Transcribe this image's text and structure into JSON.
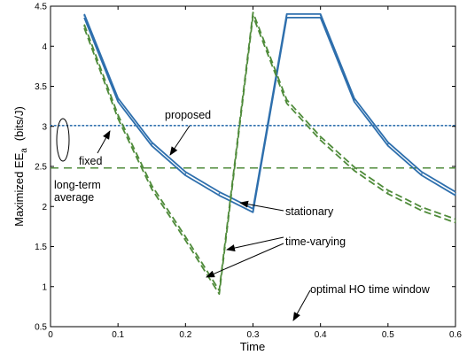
{
  "chart_data": {
    "type": "line",
    "xlabel": "Time",
    "ylabel_main": "Maximized EE",
    "ylabel_sub": "a",
    "ylabel_unit": "(bits/J)",
    "xlim": [
      0,
      0.6
    ],
    "ylim": [
      0.5,
      4.5
    ],
    "xticks": [
      "0",
      "0.1",
      "0.2",
      "0.3",
      "0.4",
      "0.5",
      "0.6"
    ],
    "yticks": [
      "0.5",
      "1",
      "1.5",
      "2",
      "2.5",
      "3",
      "3.5",
      "4",
      "4.5"
    ],
    "grid": false,
    "colors": {
      "proposed": "#2e6fad",
      "fixed": "#4f8b3a",
      "axis": "#000000"
    },
    "series": [
      {
        "name": "proposed",
        "style": "solid-double",
        "x": [
          0.05,
          0.1,
          0.15,
          0.2,
          0.25,
          0.3,
          0.35,
          0.4,
          0.45,
          0.5,
          0.55,
          0.6
        ],
        "y": [
          4.38,
          3.33,
          2.78,
          2.41,
          2.16,
          1.95,
          4.38,
          4.38,
          3.33,
          2.78,
          2.41,
          2.16
        ]
      },
      {
        "name": "fixed",
        "style": "dashed-double",
        "x": [
          0.05,
          0.1,
          0.15,
          0.2,
          0.25,
          0.3,
          0.35,
          0.4,
          0.45,
          0.5,
          0.55,
          0.6
        ],
        "y": [
          4.25,
          3.12,
          2.24,
          1.6,
          0.93,
          4.4,
          3.31,
          2.85,
          2.47,
          2.18,
          1.97,
          1.82
        ]
      }
    ],
    "reference_lines": [
      {
        "name": "proposed-average",
        "y": 3.01,
        "style": "dotted"
      },
      {
        "name": "fixed-average",
        "y": 2.48,
        "style": "dashed"
      }
    ],
    "annotations": {
      "proposed": "proposed",
      "fixed": "fixed",
      "long_term_line1": "long-term",
      "long_term_line2": "average",
      "stationary": "stationary",
      "time_varying": "time-varying",
      "optimal_ho": "optimal HO time window"
    }
  }
}
